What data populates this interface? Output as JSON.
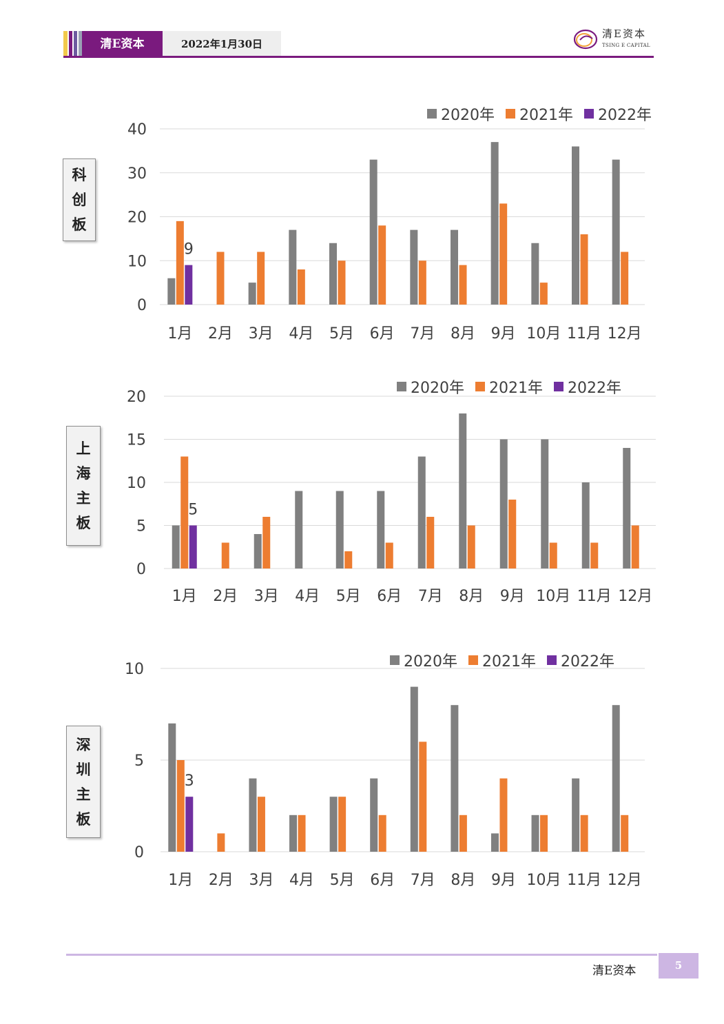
{
  "header": {
    "brand": "清E资本",
    "date": "2022年1月30日",
    "logo_cn": "清E资本",
    "logo_en": "TSING E CAPITAL"
  },
  "footer": {
    "brand": "清E资本",
    "page_number": "5"
  },
  "colors": {
    "brand_purple": "#7a1a7e",
    "series_2020": "#808080",
    "series_2021": "#ed7d31",
    "series_2022": "#7030a0"
  },
  "charts": [
    {
      "label_chars": [
        "科",
        "创",
        "板"
      ]
    },
    {
      "label_chars": [
        "上",
        "海",
        "主",
        "板"
      ]
    },
    {
      "label_chars": [
        "深",
        "圳",
        "主",
        "板"
      ]
    }
  ],
  "chart_data": [
    {
      "type": "bar",
      "categories": [
        "1月",
        "2月",
        "3月",
        "4月",
        "5月",
        "6月",
        "7月",
        "8月",
        "9月",
        "10月",
        "11月",
        "12月"
      ],
      "series": [
        {
          "name": "2020年",
          "values": [
            6,
            0,
            5,
            17,
            14,
            33,
            17,
            17,
            37,
            14,
            36,
            33
          ]
        },
        {
          "name": "2021年",
          "values": [
            19,
            12,
            12,
            8,
            10,
            18,
            10,
            9,
            23,
            5,
            16,
            12
          ]
        },
        {
          "name": "2022年",
          "values": [
            9,
            null,
            null,
            null,
            null,
            null,
            null,
            null,
            null,
            null,
            null,
            null
          ]
        }
      ],
      "data_labels": [
        {
          "series": "2022年",
          "category": "1月",
          "text": "9"
        }
      ],
      "ylim": [
        0,
        40
      ],
      "yticks": [
        0,
        10,
        20,
        30,
        40
      ],
      "legend": "top-right",
      "grid": true
    },
    {
      "type": "bar",
      "categories": [
        "1月",
        "2月",
        "3月",
        "4月",
        "5月",
        "6月",
        "7月",
        "8月",
        "9月",
        "10月",
        "11月",
        "12月"
      ],
      "series": [
        {
          "name": "2020年",
          "values": [
            5,
            0,
            4,
            9,
            9,
            9,
            13,
            18,
            15,
            15,
            10,
            14
          ]
        },
        {
          "name": "2021年",
          "values": [
            13,
            3,
            6,
            0,
            2,
            3,
            6,
            5,
            8,
            3,
            3,
            5
          ]
        },
        {
          "name": "2022年",
          "values": [
            5,
            null,
            null,
            null,
            null,
            null,
            null,
            null,
            null,
            null,
            null,
            null
          ]
        }
      ],
      "data_labels": [
        {
          "series": "2022年",
          "category": "1月",
          "text": "5"
        }
      ],
      "ylim": [
        0,
        20
      ],
      "yticks": [
        0,
        5,
        10,
        15,
        20
      ],
      "legend": "top-right",
      "grid": true
    },
    {
      "type": "bar",
      "categories": [
        "1月",
        "2月",
        "3月",
        "4月",
        "5月",
        "6月",
        "7月",
        "8月",
        "9月",
        "10月",
        "11月",
        "12月"
      ],
      "series": [
        {
          "name": "2020年",
          "values": [
            7,
            0,
            4,
            2,
            3,
            4,
            9,
            8,
            1,
            2,
            4,
            8
          ]
        },
        {
          "name": "2021年",
          "values": [
            5,
            1,
            3,
            2,
            3,
            2,
            6,
            2,
            4,
            2,
            2,
            2
          ]
        },
        {
          "name": "2022年",
          "values": [
            3,
            null,
            null,
            null,
            null,
            null,
            null,
            null,
            null,
            null,
            null,
            null
          ]
        }
      ],
      "data_labels": [
        {
          "series": "2022年",
          "category": "1月",
          "text": "3"
        }
      ],
      "ylim": [
        0,
        10
      ],
      "yticks": [
        0,
        5,
        10
      ],
      "legend": "top-right",
      "grid": true
    }
  ]
}
